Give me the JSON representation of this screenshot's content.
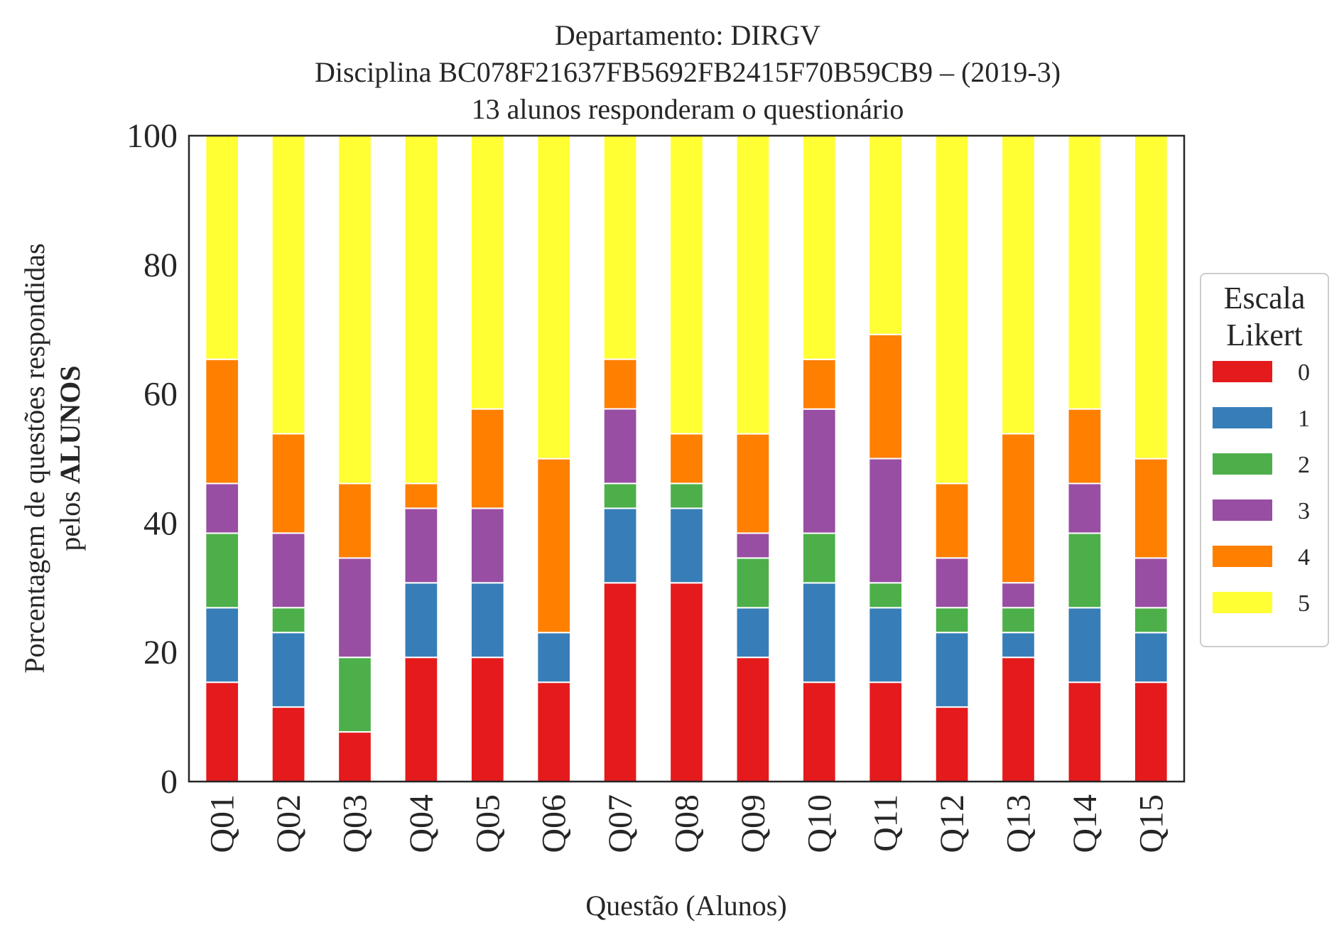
{
  "chart_data": {
    "type": "bar",
    "stacked": true,
    "title_lines": [
      "Departamento: DIRGV",
      "Disciplina BC078F21637FB5692FB2415F70B59CB9 – (2019-3)",
      "13 alunos responderam o questionário"
    ],
    "xlabel": "Questão (Alunos)",
    "ylabel_line1": "Porcentagem de questões respondidas",
    "ylabel_line2_prefix": "pelos ",
    "ylabel_line2_bold": "ALUNOS",
    "ylim": [
      0,
      100
    ],
    "yticks": [
      "0",
      "20",
      "40",
      "60",
      "80",
      "100"
    ],
    "grid": false,
    "legend": {
      "title_lines": [
        "Escala",
        "Likert"
      ],
      "placement": "right"
    },
    "categories": [
      "Q01",
      "Q02",
      "Q03",
      "Q04",
      "Q05",
      "Q06",
      "Q07",
      "Q08",
      "Q09",
      "Q10",
      "Q11",
      "Q12",
      "Q13",
      "Q14",
      "Q15"
    ],
    "series": [
      {
        "name": "0",
        "color": "#e41a1c",
        "values": [
          15.38,
          11.54,
          7.69,
          19.23,
          19.23,
          15.38,
          30.77,
          30.77,
          19.23,
          15.38,
          15.38,
          11.54,
          19.23,
          15.38,
          15.38
        ]
      },
      {
        "name": "1",
        "color": "#377eb8",
        "values": [
          11.54,
          11.54,
          0,
          11.54,
          11.54,
          7.69,
          11.54,
          11.54,
          7.69,
          15.38,
          11.54,
          11.54,
          3.85,
          11.54,
          7.69
        ]
      },
      {
        "name": "2",
        "color": "#4daf4a",
        "values": [
          11.54,
          3.85,
          11.54,
          0,
          0,
          0,
          3.85,
          3.85,
          7.69,
          7.69,
          3.85,
          3.85,
          3.85,
          11.54,
          3.85
        ]
      },
      {
        "name": "3",
        "color": "#984ea3",
        "values": [
          7.69,
          11.54,
          15.38,
          11.54,
          11.54,
          0,
          11.54,
          0,
          3.85,
          19.23,
          19.23,
          7.69,
          3.85,
          7.69,
          7.69
        ]
      },
      {
        "name": "4",
        "color": "#ff7f00",
        "values": [
          19.23,
          15.38,
          11.54,
          3.85,
          15.38,
          26.92,
          7.69,
          7.69,
          15.38,
          7.69,
          19.23,
          11.54,
          23.08,
          11.54,
          15.38
        ]
      },
      {
        "name": "5",
        "color": "#ffff33",
        "values": [
          34.62,
          46.15,
          53.85,
          53.85,
          42.31,
          50.0,
          34.62,
          46.15,
          46.15,
          34.62,
          30.77,
          53.85,
          46.15,
          42.31,
          50.0
        ]
      }
    ]
  }
}
